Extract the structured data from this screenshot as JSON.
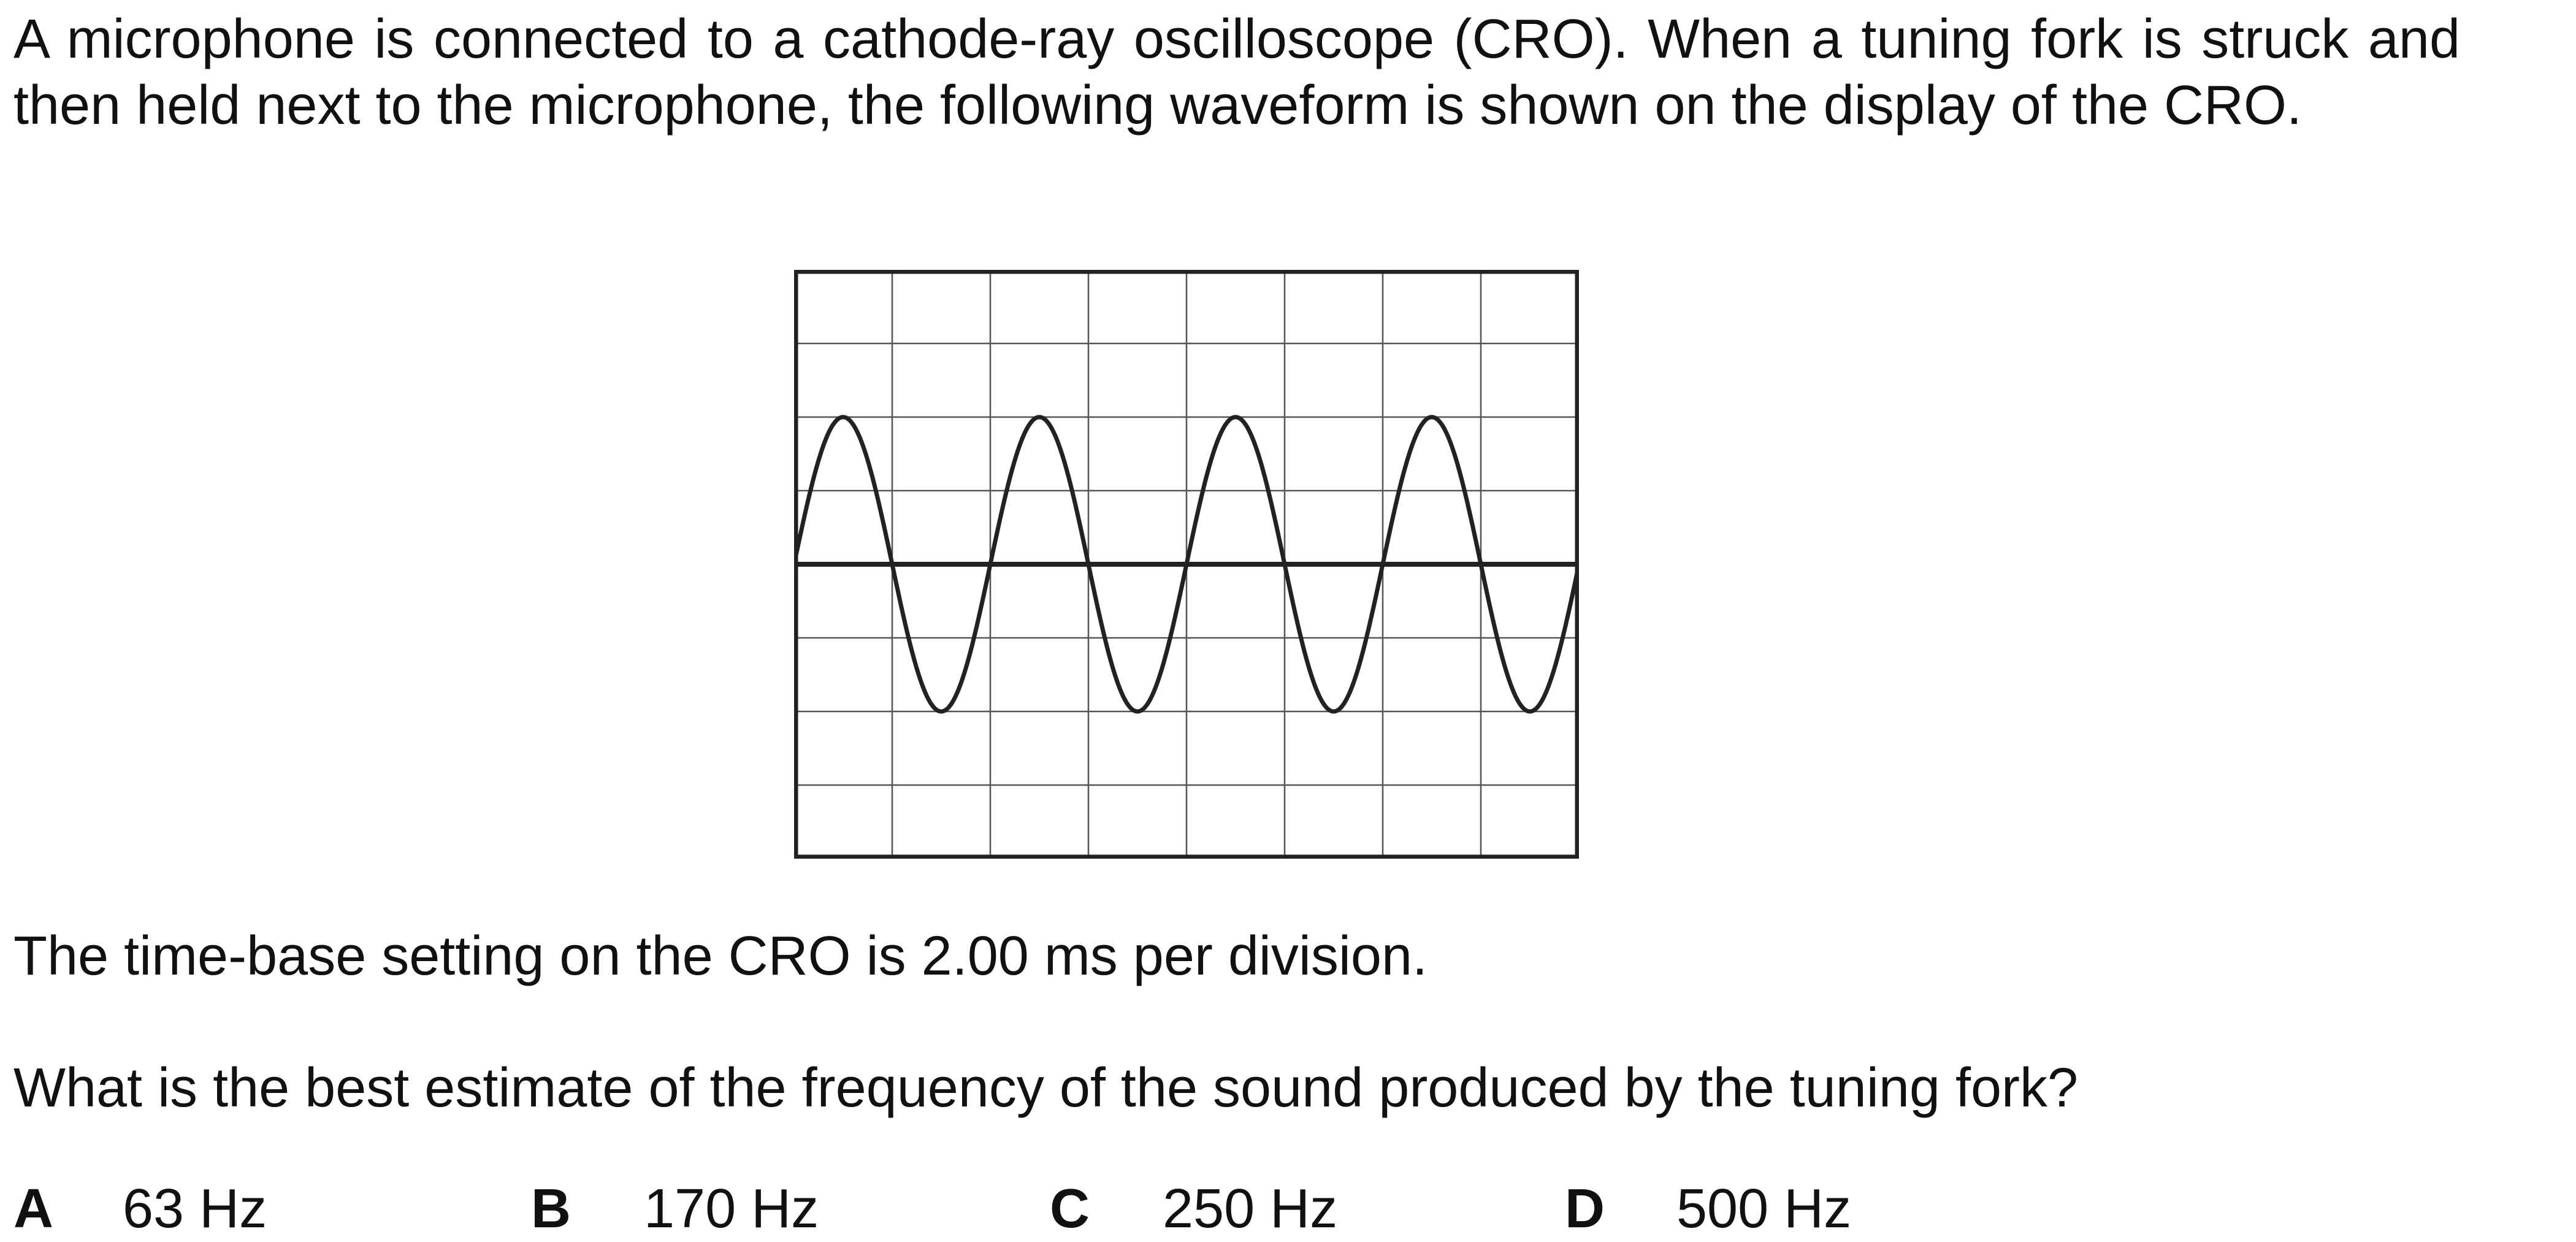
{
  "question": {
    "intro": "A microphone is connected to a cathode-ray oscilloscope (CRO). When a tuning fork is struck and then held next to the microphone, the following waveform is shown on the display of the CRO.",
    "timebase_statement": "The time-base setting on the CRO is 2.00 ms per division.",
    "prompt": "What is the best estimate of the frequency of the sound produced by the tuning fork?"
  },
  "options": [
    {
      "letter": "A",
      "text": "63 Hz"
    },
    {
      "letter": "B",
      "text": "170 Hz"
    },
    {
      "letter": "C",
      "text": "250 Hz"
    },
    {
      "letter": "D",
      "text": "500 Hz"
    }
  ],
  "cro_display": {
    "horizontal_divisions": 8,
    "vertical_divisions": 8,
    "grid": true,
    "waveform": "sine",
    "cycles_shown": 4,
    "amplitude_divisions": 2,
    "colors": {
      "grid": "#555555",
      "frame": "#222222",
      "trace": "#222222"
    }
  }
}
